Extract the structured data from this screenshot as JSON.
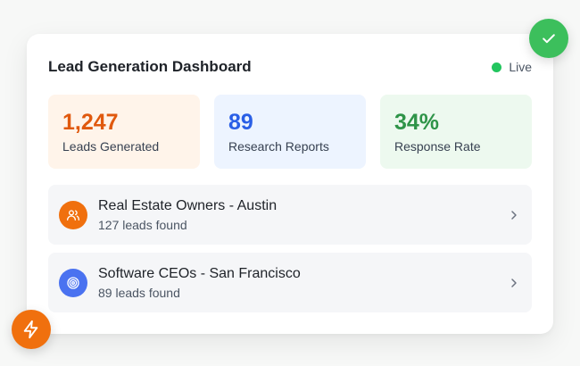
{
  "dashboard": {
    "title": "Lead Generation Dashboard",
    "status_label": "Live",
    "status_color": "#22c55e"
  },
  "stats": [
    {
      "value": "1,247",
      "label": "Leads Generated",
      "color": "#e0590e"
    },
    {
      "value": "89",
      "label": "Research Reports",
      "color": "#2a5fe6"
    },
    {
      "value": "34%",
      "label": "Response Rate",
      "color": "#2e9448"
    }
  ],
  "searches": [
    {
      "title": "Real Estate Owners - Austin",
      "subtitle": "127 leads found",
      "icon": "users-icon",
      "icon_color": "#f0700e"
    },
    {
      "title": "Software CEOs - San Francisco",
      "subtitle": "89 leads found",
      "icon": "target-icon",
      "icon_color": "#4a72f0"
    }
  ],
  "floating_buttons": {
    "check": {
      "icon": "check-icon",
      "color": "#3cbf5c"
    },
    "bolt": {
      "icon": "lightning-icon",
      "color": "#f0700e"
    }
  }
}
